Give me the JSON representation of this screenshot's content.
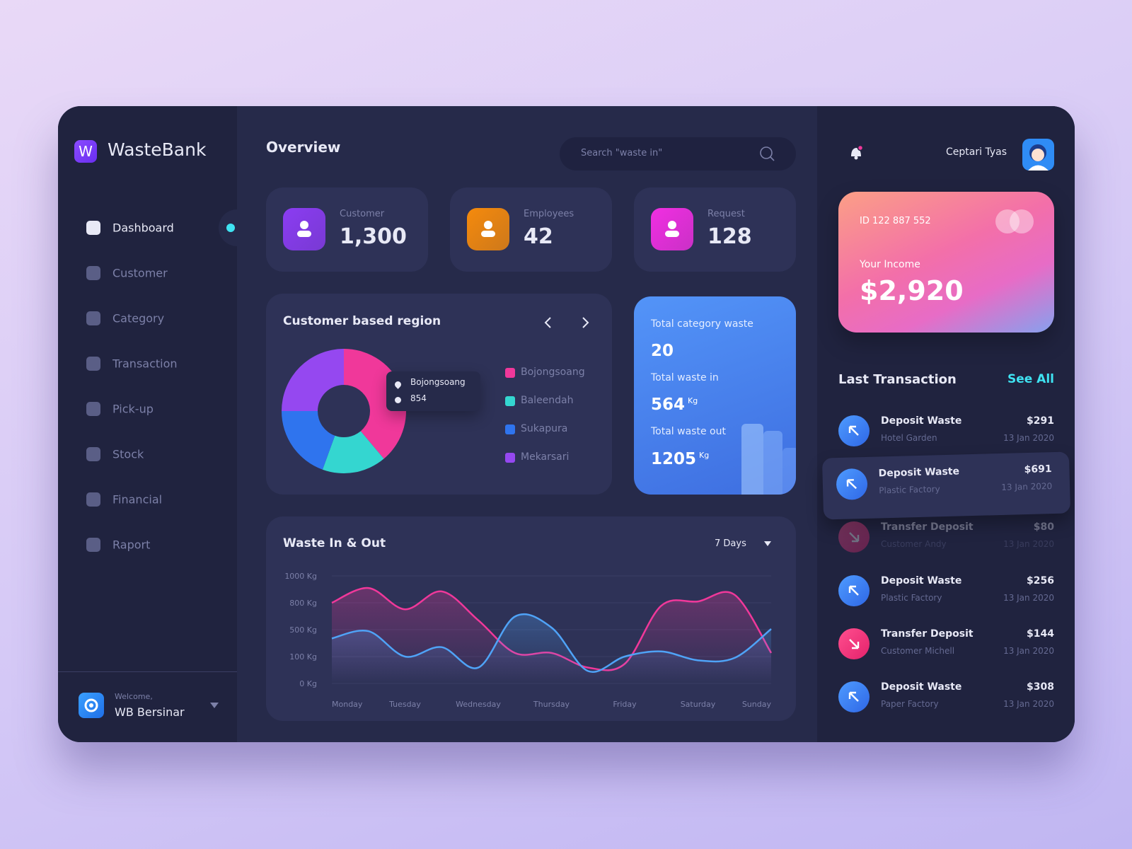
{
  "sidebar": {
    "logo": "W",
    "brand": "WasteBank",
    "menu": [
      "Dashboard",
      "Customer",
      "Category",
      "Transaction",
      "Pick-up",
      "Stock",
      "Financial",
      "Raport"
    ],
    "welcome": "Welcome,",
    "user": "WB Bersinar"
  },
  "header": {
    "title": "Overview",
    "search_placeholder": "Search \"waste in\"",
    "user_name": "Ceptari Tyas"
  },
  "stats": [
    {
      "label": "Customer",
      "value": "1,300",
      "color": "#8b3cf2"
    },
    {
      "label": "Employees",
      "value": "42",
      "color": "#f58a0c"
    },
    {
      "label": "Request",
      "value": "128",
      "color": "#f12fe2"
    }
  ],
  "summary": {
    "category_label": "Total category waste",
    "category_value": "20",
    "in_label": "Total waste in",
    "in_value": "564",
    "in_unit": "Kg",
    "out_label": "Total waste out",
    "out_value": "1205",
    "out_unit": "Kg"
  },
  "income_card": {
    "id": "ID 122 887 552",
    "label": "Your Income",
    "amount": "$2,920"
  },
  "transactions": {
    "title": "Last Transaction",
    "see_all": "See All",
    "items": [
      {
        "title": "Deposit Waste",
        "subtitle": "Hotel Garden",
        "amount": "$291",
        "date": "13 Jan 2020",
        "direction": "in"
      },
      {
        "title": "Deposit Waste",
        "subtitle": "Plastic Factory",
        "amount": "$691",
        "date": "13 Jan 2020",
        "direction": "in"
      },
      {
        "title": "Transfer Deposit",
        "subtitle": "Customer Andy",
        "amount": "$80",
        "date": "13 Jan 2020",
        "direction": "out"
      },
      {
        "title": "Deposit Waste",
        "subtitle": "Plastic Factory",
        "amount": "$256",
        "date": "13 Jan 2020",
        "direction": "in"
      },
      {
        "title": "Transfer Deposit",
        "subtitle": "Customer Michell",
        "amount": "$144",
        "date": "13 Jan 2020",
        "direction": "out"
      },
      {
        "title": "Deposit Waste",
        "subtitle": "Paper Factory",
        "amount": "$308",
        "date": "13 Jan 2020",
        "direction": "in"
      }
    ]
  },
  "chart_data": [
    {
      "type": "pie",
      "donut": true,
      "title": "Customer based region",
      "categories": [
        "Bojongsoang",
        "Baleendah",
        "Sukapura",
        "Mekarsari"
      ],
      "values": [
        854,
        366,
        427,
        549
      ],
      "colors": [
        "#f0389a",
        "#34d6d0",
        "#2f74ee",
        "#9548f0"
      ]
    },
    {
      "type": "line",
      "title": "Waste In & Out",
      "period": "7 Days",
      "categories": [
        "Monday",
        null,
        "Tuesday",
        null,
        "Wednesday",
        null,
        "Thursday",
        null,
        "Friday",
        null,
        "Saturday",
        null,
        "Sunday"
      ],
      "series": [
        {
          "color": "#f0389a",
          "values": [
            800,
            910,
            727,
            885,
            605,
            154,
            154,
            59,
            73,
            768,
            810,
            860,
            154
          ]
        },
        {
          "color": "#4fa3f7",
          "values": [
            370,
            478,
            100,
            240,
            59,
            646,
            524,
            46,
            100,
            176,
            86,
            95,
            508
          ]
        }
      ],
      "ylim": [
        0,
        1000
      ],
      "yticks": [
        {
          "value": 0,
          "label": "0 Kg"
        },
        {
          "value": 100,
          "label": "100 Kg"
        },
        {
          "value": 500,
          "label": "500 Kg"
        },
        {
          "value": 800,
          "label": "800 Kg"
        },
        {
          "value": 1000,
          "label": "1000 Kg"
        }
      ],
      "grid": true
    }
  ]
}
